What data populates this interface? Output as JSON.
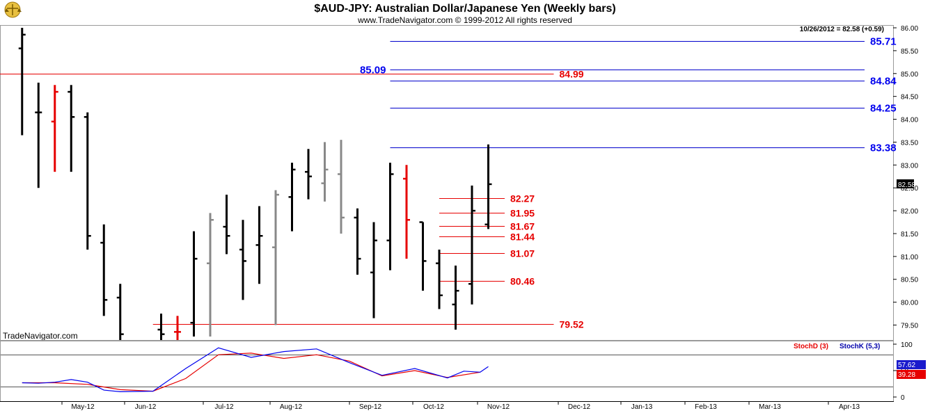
{
  "header": {
    "title": "$AUD-JPY:  Australian Dollar/Japanese Yen  (Weekly bars)",
    "copyright": "www.TradeNavigator.com © 1999-2012 All rights reserved",
    "last_info": "10/26/2012 = 82.58 (+0.59)",
    "watermark": "TradeNavigator.com",
    "logo_icon": "scales-logo-icon"
  },
  "colors": {
    "bar": "#000000",
    "bar_gray": "#888888",
    "bar_red": "#e60000",
    "level_blue": "#0000cc",
    "level_red": "#e60000",
    "stoch_d": "#e60000",
    "stoch_k": "#0000ee"
  },
  "chart_data": [
    {
      "type": "ohlc",
      "title": "$AUD-JPY:  Australian Dollar/Japanese Yen  (Weekly bars)",
      "ylim": [
        79.3,
        86.05
      ],
      "y_ticks": [
        "86.00",
        "85.50",
        "85.00",
        "84.50",
        "84.00",
        "83.50",
        "83.00",
        "82.50",
        "82.00",
        "81.50",
        "81.00",
        "80.50",
        "80.00",
        "79.50"
      ],
      "x_labels": [
        "May-12",
        "Jun-12",
        "Jul-12",
        "Aug-12",
        "Sep-12",
        "Oct-12",
        "Nov-12",
        "Dec-12",
        "Jan-13",
        "Feb-13",
        "Mar-13",
        "Apr-13"
      ],
      "last_price_label": "82.58",
      "bars": [
        {
          "w": 1,
          "o": 85.55,
          "h": 86.0,
          "l": 83.65,
          "c": 85.85,
          "color": "black"
        },
        {
          "w": 3,
          "o": 84.15,
          "h": 84.8,
          "l": 82.5,
          "c": 84.15,
          "color": "black"
        },
        {
          "w": 5,
          "o": 83.95,
          "h": 84.75,
          "l": 82.85,
          "c": 84.6,
          "color": "red"
        },
        {
          "w": 7,
          "o": 84.6,
          "h": 84.75,
          "l": 82.85,
          "c": 84.05,
          "color": "black"
        },
        {
          "w": 9,
          "o": 84.05,
          "h": 84.15,
          "l": 81.15,
          "c": 81.45,
          "color": "black"
        },
        {
          "w": 11,
          "o": 81.3,
          "h": 81.7,
          "l": 79.7,
          "c": 80.05,
          "color": "black"
        },
        {
          "w": 13,
          "o": 80.1,
          "h": 80.4,
          "l": 79.1,
          "c": 79.3,
          "color": "black"
        },
        {
          "w": 18,
          "o": 79.4,
          "h": 79.75,
          "l": 79.1,
          "c": 79.3,
          "color": "black"
        },
        {
          "w": 20,
          "o": 79.35,
          "h": 79.7,
          "l": 79.1,
          "c": 79.35,
          "color": "red"
        },
        {
          "w": 22,
          "o": 79.55,
          "h": 81.55,
          "l": 79.25,
          "c": 80.95,
          "color": "black"
        },
        {
          "w": 24,
          "o": 80.85,
          "h": 81.95,
          "l": 79.25,
          "c": 81.8,
          "color": "gray"
        },
        {
          "w": 26,
          "o": 81.65,
          "h": 82.35,
          "l": 81.05,
          "c": 81.45,
          "color": "black"
        },
        {
          "w": 28,
          "o": 81.15,
          "h": 81.8,
          "l": 80.05,
          "c": 80.9,
          "color": "black"
        },
        {
          "w": 30,
          "o": 81.25,
          "h": 82.1,
          "l": 80.4,
          "c": 81.45,
          "color": "black"
        },
        {
          "w": 32,
          "o": 81.2,
          "h": 82.45,
          "l": 79.5,
          "c": 82.35,
          "color": "gray"
        },
        {
          "w": 34,
          "o": 82.3,
          "h": 83.05,
          "l": 81.55,
          "c": 82.9,
          "color": "black"
        },
        {
          "w": 36,
          "o": 82.85,
          "h": 83.35,
          "l": 82.25,
          "c": 82.75,
          "color": "black"
        },
        {
          "w": 38,
          "o": 82.6,
          "h": 83.5,
          "l": 82.2,
          "c": 82.9,
          "color": "gray"
        },
        {
          "w": 40,
          "o": 82.8,
          "h": 83.55,
          "l": 81.5,
          "c": 81.85,
          "color": "gray"
        },
        {
          "w": 42,
          "o": 81.85,
          "h": 82.05,
          "l": 80.6,
          "c": 80.95,
          "color": "black"
        },
        {
          "w": 44,
          "o": 80.65,
          "h": 81.75,
          "l": 79.65,
          "c": 81.35,
          "color": "black"
        },
        {
          "w": 46,
          "o": 81.35,
          "h": 83.05,
          "l": 80.7,
          "c": 82.8,
          "color": "black"
        },
        {
          "w": 48,
          "o": 82.7,
          "h": 83.0,
          "l": 80.95,
          "c": 81.8,
          "color": "red"
        },
        {
          "w": 50,
          "o": 81.75,
          "h": 81.75,
          "l": 80.25,
          "c": 80.9,
          "color": "black"
        },
        {
          "w": 52,
          "o": 80.85,
          "h": 81.15,
          "l": 79.85,
          "c": 80.15,
          "color": "black"
        },
        {
          "w": 54,
          "o": 79.95,
          "h": 80.8,
          "l": 79.4,
          "c": 80.25,
          "color": "black"
        },
        {
          "w": 56,
          "o": 80.4,
          "h": 82.55,
          "l": 79.95,
          "c": 82.0,
          "color": "black"
        },
        {
          "w": 58,
          "o": 81.7,
          "h": 83.45,
          "l": 81.6,
          "c": 82.58,
          "color": "black"
        }
      ],
      "levels": [
        {
          "value": 85.71,
          "label": "85.71",
          "color": "blue",
          "from_w": 46,
          "to_w": 104,
          "label_side": "right"
        },
        {
          "value": 85.09,
          "label": "85.09",
          "color": "blue",
          "from_w": 46,
          "to_w": 104,
          "label_side": "left"
        },
        {
          "value": 84.99,
          "label": "84.99",
          "color": "red",
          "from_w": -3,
          "to_w": 66,
          "label_side": "right"
        },
        {
          "value": 84.84,
          "label": "84.84",
          "color": "blue",
          "from_w": 46,
          "to_w": 104,
          "label_side": "right"
        },
        {
          "value": 84.25,
          "label": "84.25",
          "color": "blue",
          "from_w": 46,
          "to_w": 104,
          "label_side": "right"
        },
        {
          "value": 83.38,
          "label": "83.38",
          "color": "blue",
          "from_w": 46,
          "to_w": 104,
          "label_side": "right"
        },
        {
          "value": 82.27,
          "label": "82.27",
          "color": "red",
          "from_w": 52,
          "to_w": 60,
          "label_side": "right"
        },
        {
          "value": 81.95,
          "label": "81.95",
          "color": "red",
          "from_w": 52,
          "to_w": 60,
          "label_side": "right"
        },
        {
          "value": 81.67,
          "label": "81.67",
          "color": "red",
          "from_w": 52,
          "to_w": 60,
          "label_side": "right"
        },
        {
          "value": 81.44,
          "label": "81.44",
          "color": "red",
          "from_w": 52,
          "to_w": 60,
          "label_side": "right"
        },
        {
          "value": 81.07,
          "label": "81.07",
          "color": "red",
          "from_w": 52,
          "to_w": 60,
          "label_side": "right"
        },
        {
          "value": 80.46,
          "label": "80.46",
          "color": "red",
          "from_w": 52,
          "to_w": 60,
          "label_side": "right"
        },
        {
          "value": 79.52,
          "label": "79.52",
          "color": "red",
          "from_w": 17,
          "to_w": 66,
          "label_side": "right"
        }
      ]
    },
    {
      "type": "line",
      "title": "",
      "legend": [
        "StochD (3)",
        "StochK (5,3)"
      ],
      "ylim": [
        0,
        100
      ],
      "y_ticks": [
        "100",
        "50",
        "0"
      ],
      "ref_lines": [
        80,
        20
      ],
      "last_values": {
        "stochk": "57.62",
        "stochd": "39.28"
      },
      "series": [
        {
          "name": "StochD (3)",
          "color": "red",
          "w": [
            1,
            5,
            9,
            13,
            17,
            21,
            25,
            29,
            33,
            37,
            41,
            45,
            49,
            53,
            57
          ],
          "values": [
            27,
            27,
            24,
            14,
            11,
            35,
            80,
            83,
            73,
            80,
            68,
            40,
            50,
            37,
            47
          ]
        },
        {
          "name": "StochK (5,3)",
          "color": "blue",
          "w": [
            1,
            3,
            5,
            7,
            9,
            11,
            13,
            17,
            21,
            25,
            29,
            33,
            37,
            41,
            45,
            49,
            53,
            55,
            57,
            58
          ],
          "values": [
            27,
            26,
            28,
            33,
            28,
            13,
            10,
            11,
            54,
            93,
            75,
            86,
            91,
            65,
            41,
            54,
            36,
            49,
            47,
            57.62
          ]
        }
      ]
    }
  ]
}
